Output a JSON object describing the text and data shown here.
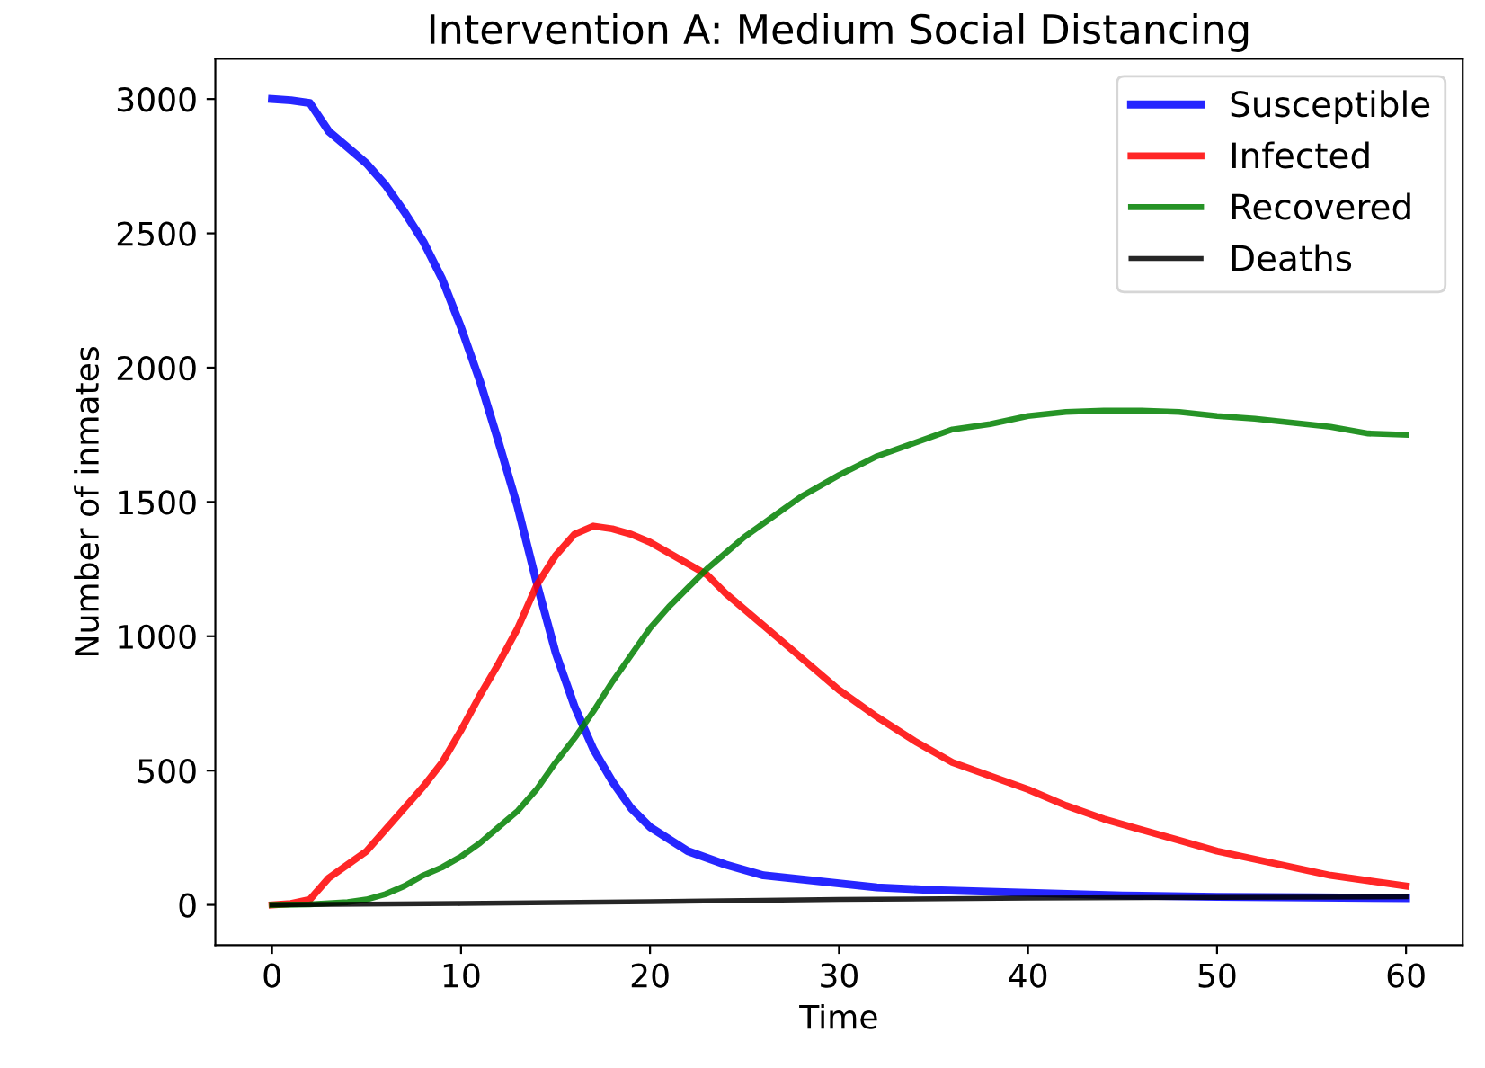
{
  "chart_data": {
    "type": "line",
    "title": "Intervention A: Medium Social Distancing",
    "xlabel": "Time",
    "ylabel": "Number of inmates",
    "xlim": [
      -3,
      63
    ],
    "ylim": [
      -150,
      3150
    ],
    "xticks": [
      0,
      10,
      20,
      30,
      40,
      50,
      60
    ],
    "yticks": [
      0,
      500,
      1000,
      1500,
      2000,
      2500,
      3000
    ],
    "grid": false,
    "legend": "top right",
    "series": [
      {
        "name": "Susceptible",
        "color": "#0000ff",
        "x": [
          0,
          1,
          2,
          3,
          4,
          5,
          6,
          7,
          8,
          9,
          10,
          11,
          12,
          13,
          14,
          15,
          16,
          17,
          18,
          19,
          20,
          22,
          24,
          26,
          28,
          30,
          32,
          35,
          40,
          45,
          50,
          55,
          60
        ],
        "values": [
          3000,
          2995,
          2985,
          2880,
          2820,
          2760,
          2680,
          2580,
          2470,
          2330,
          2150,
          1950,
          1720,
          1480,
          1200,
          940,
          740,
          580,
          460,
          360,
          290,
          200,
          150,
          110,
          95,
          80,
          65,
          55,
          45,
          35,
          30,
          28,
          25
        ]
      },
      {
        "name": "Infected",
        "color": "#ff0000",
        "x": [
          0,
          1,
          2,
          3,
          4,
          5,
          6,
          7,
          8,
          9,
          10,
          11,
          12,
          13,
          14,
          15,
          16,
          17,
          18,
          19,
          20,
          21,
          22,
          23,
          24,
          26,
          28,
          30,
          32,
          34,
          36,
          38,
          40,
          42,
          44,
          46,
          48,
          50,
          52,
          54,
          56,
          58,
          60
        ],
        "values": [
          0,
          5,
          20,
          100,
          150,
          200,
          280,
          360,
          440,
          530,
          650,
          780,
          900,
          1030,
          1190,
          1300,
          1380,
          1410,
          1400,
          1380,
          1350,
          1310,
          1270,
          1230,
          1160,
          1040,
          920,
          800,
          700,
          610,
          530,
          480,
          430,
          370,
          320,
          280,
          240,
          200,
          170,
          140,
          110,
          90,
          70
        ]
      },
      {
        "name": "Recovered",
        "color": "#008000",
        "x": [
          0,
          2,
          4,
          5,
          6,
          7,
          8,
          9,
          10,
          11,
          12,
          13,
          14,
          15,
          16,
          17,
          18,
          19,
          20,
          21,
          22,
          23,
          24,
          25,
          26,
          27,
          28,
          30,
          32,
          34,
          36,
          38,
          40,
          42,
          44,
          46,
          48,
          50,
          52,
          54,
          56,
          58,
          60
        ],
        "values": [
          0,
          2,
          10,
          20,
          40,
          70,
          110,
          140,
          180,
          230,
          290,
          350,
          430,
          530,
          620,
          720,
          830,
          930,
          1030,
          1110,
          1180,
          1250,
          1310,
          1370,
          1420,
          1470,
          1520,
          1600,
          1670,
          1720,
          1770,
          1790,
          1820,
          1835,
          1840,
          1840,
          1835,
          1820,
          1810,
          1795,
          1780,
          1755,
          1750
        ]
      },
      {
        "name": "Deaths",
        "color": "#000000",
        "x": [
          0,
          10,
          20,
          30,
          40,
          50,
          60
        ],
        "values": [
          0,
          5,
          12,
          20,
          25,
          28,
          30
        ]
      }
    ]
  }
}
